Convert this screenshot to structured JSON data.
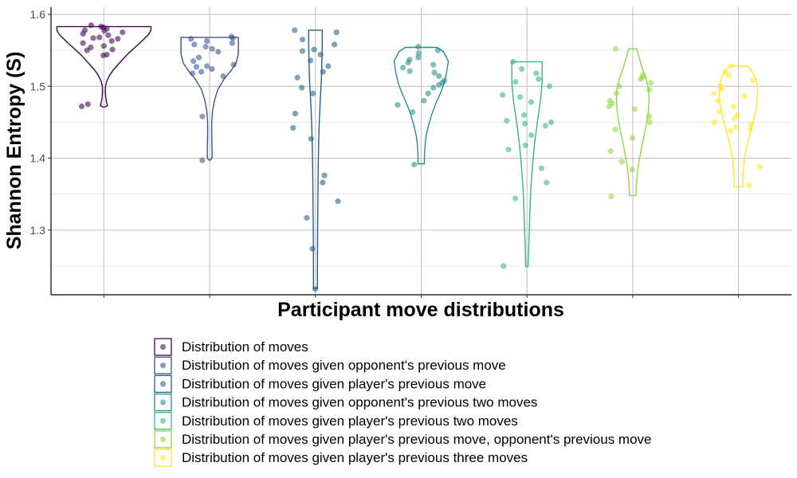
{
  "chart_data": {
    "type": "violin",
    "xlabel": "Participant move distributions",
    "ylabel": "Shannon Entropy (S)",
    "ylim": [
      1.21,
      1.61
    ],
    "yticks": [
      1.3,
      1.4,
      1.5,
      1.6
    ],
    "grid": true,
    "legend_position": "bottom",
    "series": [
      {
        "name": "Distribution of moves",
        "color": "#440154",
        "violin": {
          "ymin": 1.471,
          "ymax": 1.583,
          "profile": [
            [
              1.471,
              0.6
            ],
            [
              1.473,
              4.5
            ],
            [
              1.478,
              3.2
            ],
            [
              1.485,
              2.2
            ],
            [
              1.493,
              1.8
            ],
            [
              1.5,
              2.0
            ],
            [
              1.507,
              3.5
            ],
            [
              1.515,
              7
            ],
            [
              1.523,
              12
            ],
            [
              1.533,
              20
            ],
            [
              1.545,
              30
            ],
            [
              1.56,
              45
            ],
            [
              1.572,
              56
            ],
            [
              1.578,
              59
            ],
            [
              1.583,
              59
            ]
          ]
        },
        "points": [
          1.582,
          1.58,
          1.578,
          1.585,
          1.583,
          1.577,
          1.573,
          1.575,
          1.571,
          1.568,
          1.567,
          1.566,
          1.563,
          1.56,
          1.556,
          1.554,
          1.551,
          1.55,
          1.544,
          1.543,
          1.475,
          1.472
        ]
      },
      {
        "name": "Distribution of moves given opponent's previous move",
        "color": "#3b528b",
        "violin": {
          "ymin": 1.397,
          "ymax": 1.568,
          "profile": [
            [
              1.397,
              0.5
            ],
            [
              1.4,
              3
            ],
            [
              1.41,
              3
            ],
            [
              1.42,
              2.8
            ],
            [
              1.435,
              2.5
            ],
            [
              1.45,
              2.6
            ],
            [
              1.465,
              3.5
            ],
            [
              1.48,
              6
            ],
            [
              1.495,
              10
            ],
            [
              1.51,
              18
            ],
            [
              1.522,
              27
            ],
            [
              1.532,
              33
            ],
            [
              1.545,
              36
            ],
            [
              1.558,
              36
            ],
            [
              1.568,
              36
            ]
          ]
        },
        "points": [
          1.569,
          1.567,
          1.566,
          1.563,
          1.56,
          1.558,
          1.555,
          1.552,
          1.548,
          1.54,
          1.535,
          1.53,
          1.528,
          1.527,
          1.524,
          1.52,
          1.518,
          1.514,
          1.458,
          1.397
        ]
      },
      {
        "name": "Distribution of moves given player's previous move",
        "color": "#21618c",
        "violin": {
          "ymin": 1.219,
          "ymax": 1.578,
          "profile": [
            [
              1.219,
              2.5
            ],
            [
              1.24,
              2.5
            ],
            [
              1.27,
              2.6
            ],
            [
              1.3,
              2.7
            ],
            [
              1.33,
              3.0
            ],
            [
              1.36,
              3.2
            ],
            [
              1.39,
              3.5
            ],
            [
              1.42,
              4.0
            ],
            [
              1.45,
              4.8
            ],
            [
              1.48,
              6
            ],
            [
              1.51,
              7.5
            ],
            [
              1.54,
              8.2
            ],
            [
              1.56,
              8.5
            ],
            [
              1.578,
              8.5
            ]
          ]
        },
        "points": [
          1.578,
          1.575,
          1.565,
          1.558,
          1.551,
          1.549,
          1.544,
          1.536,
          1.528,
          1.52,
          1.512,
          1.498,
          1.49,
          1.462,
          1.442,
          1.427,
          1.376,
          1.366,
          1.34,
          1.317,
          1.274,
          1.218
        ]
      },
      {
        "name": "Distribution of moves given opponent's previous two moves",
        "color": "#21918c",
        "violin": {
          "ymin": 1.392,
          "ymax": 1.554,
          "profile": [
            [
              1.392,
              4
            ],
            [
              1.4,
              4
            ],
            [
              1.415,
              4.5
            ],
            [
              1.43,
              6
            ],
            [
              1.445,
              9
            ],
            [
              1.46,
              13
            ],
            [
              1.475,
              18
            ],
            [
              1.49,
              24
            ],
            [
              1.505,
              29
            ],
            [
              1.52,
              32
            ],
            [
              1.535,
              34
            ],
            [
              1.548,
              28
            ],
            [
              1.554,
              20
            ]
          ]
        },
        "points": [
          1.555,
          1.55,
          1.546,
          1.54,
          1.537,
          1.533,
          1.53,
          1.526,
          1.521,
          1.519,
          1.514,
          1.508,
          1.505,
          1.502,
          1.498,
          1.49,
          1.48,
          1.474,
          1.464,
          1.391
        ]
      },
      {
        "name": "Distribution of moves given player's previous two moves",
        "color": "#35b779",
        "violin": {
          "ymin": 1.249,
          "ymax": 1.534,
          "profile": [
            [
              1.249,
              1.5
            ],
            [
              1.27,
              2
            ],
            [
              1.3,
              3
            ],
            [
              1.33,
              3.8
            ],
            [
              1.36,
              5
            ],
            [
              1.39,
              7
            ],
            [
              1.42,
              9.5
            ],
            [
              1.45,
              13
            ],
            [
              1.48,
              17
            ],
            [
              1.505,
              19
            ],
            [
              1.52,
              19
            ],
            [
              1.534,
              19
            ]
          ]
        },
        "points": [
          1.534,
          1.524,
          1.518,
          1.51,
          1.506,
          1.5,
          1.488,
          1.485,
          1.478,
          1.46,
          1.452,
          1.45,
          1.448,
          1.445,
          1.432,
          1.418,
          1.412,
          1.386,
          1.366,
          1.344,
          1.25
        ]
      },
      {
        "name": "Distribution of moves given player's previous move, opponent's previous move",
        "color": "#8fd744",
        "violin": {
          "ymin": 1.348,
          "ymax": 1.552,
          "profile": [
            [
              1.348,
              4
            ],
            [
              1.36,
              4.5
            ],
            [
              1.375,
              5.5
            ],
            [
              1.39,
              7
            ],
            [
              1.405,
              9.5
            ],
            [
              1.42,
              12
            ],
            [
              1.435,
              15
            ],
            [
              1.45,
              17.5
            ],
            [
              1.465,
              19.5
            ],
            [
              1.48,
              20.5
            ],
            [
              1.495,
              20
            ],
            [
              1.51,
              17
            ],
            [
              1.525,
              12
            ],
            [
              1.54,
              8
            ],
            [
              1.552,
              5
            ]
          ]
        },
        "points": [
          1.552,
          1.516,
          1.512,
          1.51,
          1.505,
          1.5,
          1.495,
          1.49,
          1.48,
          1.476,
          1.472,
          1.468,
          1.458,
          1.45,
          1.44,
          1.428,
          1.41,
          1.395,
          1.384,
          1.347
        ]
      },
      {
        "name": "Distribution of moves given player's previous three moves",
        "color": "#fde725",
        "violin": {
          "ymin": 1.36,
          "ymax": 1.528,
          "profile": [
            [
              1.36,
              5.5
            ],
            [
              1.37,
              5.5
            ],
            [
              1.385,
              6
            ],
            [
              1.4,
              7.5
            ],
            [
              1.415,
              10
            ],
            [
              1.43,
              13.5
            ],
            [
              1.445,
              17
            ],
            [
              1.46,
              20.5
            ],
            [
              1.475,
              23
            ],
            [
              1.49,
              24
            ],
            [
              1.505,
              23
            ],
            [
              1.515,
              20
            ],
            [
              1.522,
              16
            ],
            [
              1.528,
              12
            ]
          ]
        },
        "points": [
          1.528,
          1.52,
          1.515,
          1.508,
          1.5,
          1.496,
          1.49,
          1.486,
          1.48,
          1.472,
          1.465,
          1.46,
          1.455,
          1.45,
          1.447,
          1.443,
          1.44,
          1.438,
          1.388,
          1.362
        ]
      }
    ]
  }
}
